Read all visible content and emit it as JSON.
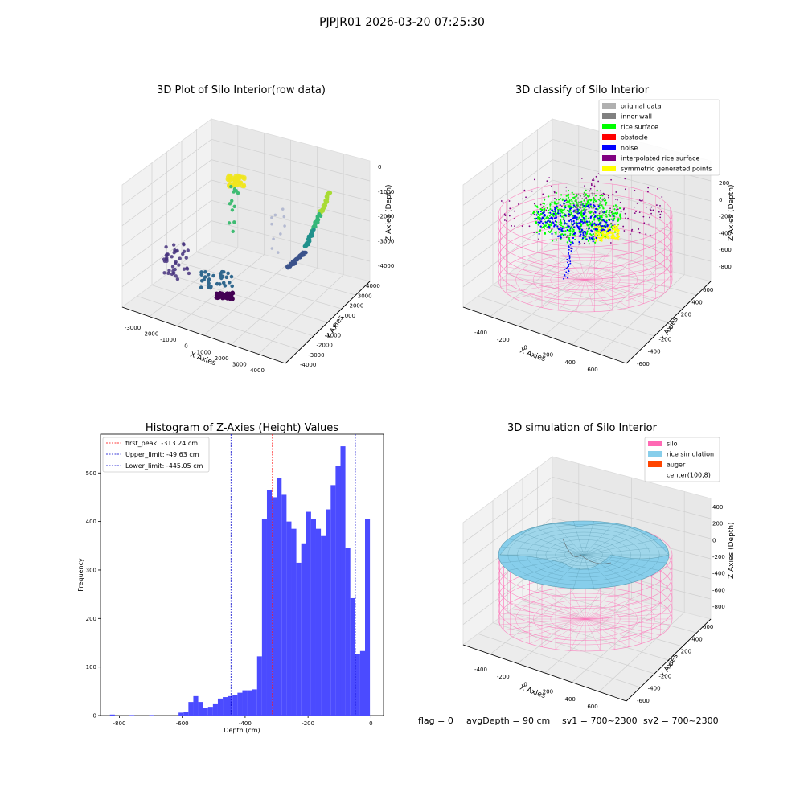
{
  "suptitle": "PJPJR01 2026-03-20 07:25:30",
  "colors": {
    "grey": "#b0b0b0",
    "inner_wall": "#808080",
    "rice": "#00ff00",
    "obstacle": "#ff0000",
    "noise": "#0000ff",
    "interp": "#800080",
    "sym": "#ffff00",
    "silo": "#ff69b4",
    "rice_sim": "#87ceeb",
    "auger": "#ff4500",
    "hist": "#4b4bff"
  },
  "footer": {
    "flag": "flag = 0",
    "avg": "avgDepth = 90 cm",
    "sv1": "sv1 = 700~2300",
    "sv2": "sv2 = 700~2300"
  },
  "chart_data": [
    {
      "type": "scatter",
      "title": "3D Plot of Silo Interior(row data)",
      "xlabel": "X Axies",
      "ylabel": "Y Axies",
      "zlabel": "Z Axies (Depth)",
      "xticks": [
        "-3000",
        "-2000",
        "-1000",
        "0",
        "1000",
        "2000",
        "3000",
        "4000"
      ],
      "yticks": [
        "4000",
        "3000",
        "2000",
        "1000",
        "0",
        "-1000",
        "-2000",
        "-3000",
        "-4000"
      ],
      "zticks": [
        "0",
        "-1000",
        "-2000",
        "-3000",
        "-4000"
      ]
    },
    {
      "type": "scatter",
      "title": "3D classify of Silo Interior",
      "xlabel": "X Axies",
      "ylabel": "Y Axies",
      "zlabel": "Z Axies (Depth)",
      "xticks": [
        "-400",
        "-200",
        "0",
        "200",
        "400",
        "600"
      ],
      "yticks": [
        "600",
        "400",
        "200",
        "0",
        "-200",
        "-400",
        "-600"
      ],
      "zticks": [
        "200",
        "0",
        "-200",
        "-400",
        "-600",
        "-800"
      ],
      "legend": [
        "original data",
        "inner wall",
        "rice surface",
        "obstacle",
        "noise",
        "interpolated rice surface",
        "symmetric generated points"
      ],
      "legend_placement": "top-right"
    },
    {
      "type": "bar",
      "title": "Histogram of Z-Axies (Height) Values",
      "xlabel": "Depth (cm)",
      "ylabel": "Frequency",
      "xlim": [
        -860,
        40
      ],
      "ylim": [
        0,
        580
      ],
      "xticks": [
        -800,
        -600,
        -400,
        -200,
        0
      ],
      "yticks": [
        0,
        100,
        200,
        300,
        400,
        500
      ],
      "bin_width": 15.6,
      "bin_start": -830,
      "values": [
        2,
        0,
        0,
        0,
        1,
        0,
        0,
        0,
        1,
        0,
        0,
        0,
        0,
        0,
        6,
        8,
        28,
        40,
        28,
        16,
        18,
        25,
        35,
        38,
        40,
        42,
        47,
        52,
        52,
        54,
        122,
        405,
        465,
        450,
        490,
        455,
        400,
        385,
        315,
        355,
        420,
        405,
        385,
        370,
        425,
        475,
        515,
        555,
        345,
        242,
        127,
        133,
        405
      ],
      "lines": [
        {
          "label": "first_peak: -313.24 cm",
          "x": -313.24,
          "color": "#ff0000"
        },
        {
          "label": "Upper_limit: -49.63 cm",
          "x": -49.63,
          "color": "#0000cc"
        },
        {
          "label": "Lower_limit: -445.05 cm",
          "x": -445.05,
          "color": "#0000cc"
        }
      ],
      "legend_placement": "top-left"
    },
    {
      "type": "surface",
      "title": "3D simulation of Silo Interior",
      "xlabel": "X Axies",
      "ylabel": "Y Axies",
      "zlabel": "Z Axies (Depth)",
      "xticks": [
        "-400",
        "-200",
        "0",
        "200",
        "400",
        "600"
      ],
      "yticks": [
        "600",
        "400",
        "200",
        "0",
        "-200",
        "-400",
        "-600"
      ],
      "zticks": [
        "400",
        "200",
        "0",
        "-200",
        "-400",
        "-600",
        "-800"
      ],
      "legend": [
        "silo",
        "rice simulation",
        "auger",
        "center(100,8)"
      ],
      "legend_placement": "top-right"
    }
  ]
}
